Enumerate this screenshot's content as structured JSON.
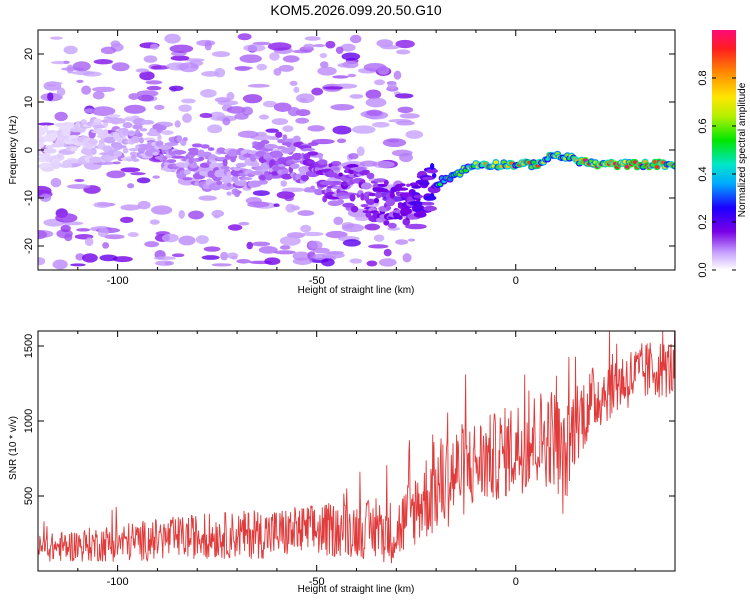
{
  "chart_data": [
    {
      "type": "heatmap",
      "title": "KOM5.2026.099.20.50.G10",
      "xlabel": "Height of straight line (km)",
      "ylabel": "Frequency (Hz)",
      "xlim": [
        -120,
        40
      ],
      "ylim": [
        -25,
        25
      ],
      "xticks": [
        -100,
        -50,
        0
      ],
      "yticks": [
        -20,
        -10,
        0,
        10,
        20
      ],
      "colorbar": {
        "label": "Normalized spectral amplitude",
        "range": [
          0,
          1
        ],
        "ticks": [
          0.0,
          0.2,
          0.4,
          0.6,
          0.8
        ],
        "tick_labels": [
          "0.0",
          "0.2",
          "0.4",
          "0.6",
          "0.8"
        ]
      },
      "ridge": {
        "x": [
          -120,
          -100,
          -90,
          -80,
          -70,
          -60,
          -55,
          -50,
          -45,
          -40,
          -35,
          -30,
          -25,
          -20,
          -15,
          -10,
          -5,
          0,
          5,
          10,
          15,
          20,
          25,
          30,
          35,
          40
        ],
        "freq": [
          0,
          3,
          1,
          -3,
          -5,
          -1,
          -2,
          -5,
          -7,
          -8,
          -10,
          -12,
          -10,
          -7,
          -5,
          -3,
          -3,
          -3,
          -3,
          -1,
          -2,
          -3,
          -3,
          -3,
          -3,
          -3
        ],
        "amplitude": [
          0.05,
          0.12,
          0.15,
          0.18,
          0.18,
          0.22,
          0.22,
          0.25,
          0.25,
          0.28,
          0.3,
          0.3,
          0.35,
          0.45,
          0.55,
          0.7,
          0.75,
          0.8,
          0.8,
          0.75,
          0.85,
          0.95,
          0.95,
          0.9,
          0.9,
          0.85
        ]
      }
    },
    {
      "type": "line",
      "title": "",
      "xlabel": "Height of straight line (km)",
      "ylabel": "SNR (10 * v/v)",
      "xlim": [
        -120,
        40
      ],
      "ylim": [
        0,
        1600
      ],
      "xticks": [
        -100,
        -50,
        0
      ],
      "yticks": [
        500,
        1000,
        1500
      ],
      "series": [
        {
          "name": "SNR",
          "color": "#e03a3a",
          "x": [
            -120,
            -110,
            -100,
            -90,
            -80,
            -70,
            -60,
            -50,
            -40,
            -30,
            -25,
            -20,
            -15,
            -10,
            -5,
            0,
            5,
            10,
            12,
            15,
            20,
            25,
            30,
            35,
            40
          ],
          "mean": [
            150,
            170,
            190,
            210,
            230,
            240,
            250,
            270,
            280,
            260,
            430,
            560,
            650,
            720,
            760,
            820,
            880,
            900,
            700,
            1000,
            1150,
            1250,
            1300,
            1350,
            1350
          ],
          "spread": [
            90,
            110,
            130,
            140,
            150,
            160,
            170,
            180,
            190,
            220,
            260,
            330,
            330,
            300,
            300,
            320,
            330,
            340,
            350,
            280,
            230,
            210,
            210,
            200,
            200
          ]
        }
      ]
    }
  ]
}
